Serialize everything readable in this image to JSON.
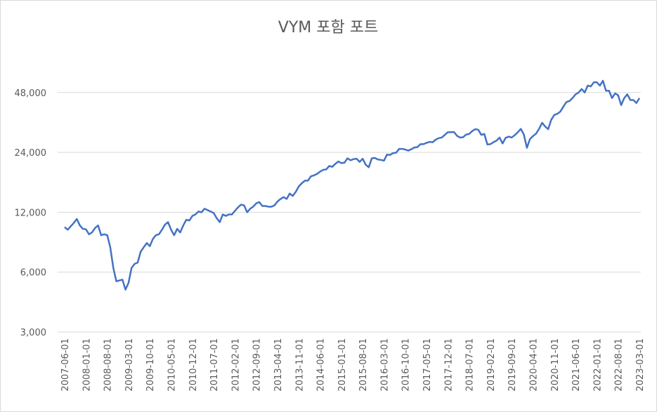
{
  "chart_data": {
    "type": "line",
    "title": "VYM 포함 포트",
    "categories": [
      "2007-06-01",
      null,
      null,
      null,
      null,
      null,
      null,
      "2008-01-01",
      null,
      null,
      null,
      null,
      null,
      null,
      "2008-08-01",
      null,
      null,
      null,
      null,
      null,
      null,
      "2009-03-01",
      null,
      null,
      null,
      null,
      null,
      null,
      "2009-10-01",
      null,
      null,
      null,
      null,
      null,
      null,
      "2010-05-01",
      null,
      null,
      null,
      null,
      null,
      null,
      "2010-12-01",
      null,
      null,
      null,
      null,
      null,
      null,
      "2011-07-01",
      null,
      null,
      null,
      null,
      null,
      null,
      "2012-02-01",
      null,
      null,
      null,
      null,
      null,
      null,
      "2012-09-01",
      null,
      null,
      null,
      null,
      null,
      null,
      "2013-04-01",
      null,
      null,
      null,
      null,
      null,
      null,
      "2013-11-01",
      null,
      null,
      null,
      null,
      null,
      null,
      "2014-06-01",
      null,
      null,
      null,
      null,
      null,
      null,
      "2015-01-01",
      null,
      null,
      null,
      null,
      null,
      null,
      "2015-08-01",
      null,
      null,
      null,
      null,
      null,
      null,
      "2016-03-01",
      null,
      null,
      null,
      null,
      null,
      null,
      "2016-10-01",
      null,
      null,
      null,
      null,
      null,
      null,
      "2017-05-01",
      null,
      null,
      null,
      null,
      null,
      null,
      "2017-12-01",
      null,
      null,
      null,
      null,
      null,
      null,
      "2018-07-01",
      null,
      null,
      null,
      null,
      null,
      null,
      "2019-02-01",
      null,
      null,
      null,
      null,
      null,
      null,
      "2019-09-01",
      null,
      null,
      null,
      null,
      null,
      null,
      "2020-04-01",
      null,
      null,
      null,
      null,
      null,
      null,
      "2020-11-01",
      null,
      null,
      null,
      null,
      null,
      null,
      "2021-06-01",
      null,
      null,
      null,
      null,
      null,
      null,
      "2022-01-01",
      null,
      null,
      null,
      null,
      null,
      null,
      "2022-08-01",
      null,
      null,
      null,
      null,
      null,
      null,
      "2023-03-01"
    ],
    "values": [
      10100,
      9800,
      10200,
      10600,
      11100,
      10300,
      9900,
      9850,
      9300,
      9500,
      10000,
      10300,
      9200,
      9300,
      9200,
      8000,
      6300,
      5400,
      5450,
      5500,
      4900,
      5300,
      6300,
      6600,
      6700,
      7600,
      8000,
      8400,
      8100,
      8800,
      9200,
      9300,
      9800,
      10400,
      10700,
      9800,
      9200,
      9900,
      9500,
      10300,
      11000,
      10900,
      11500,
      11700,
      12100,
      12000,
      12500,
      12300,
      12100,
      11900,
      11200,
      10700,
      11700,
      11500,
      11700,
      11700,
      12200,
      12700,
      13100,
      13000,
      12000,
      12500,
      12800,
      13300,
      13500,
      12900,
      12900,
      12800,
      12800,
      13000,
      13600,
      14000,
      14300,
      14000,
      14900,
      14500,
      15200,
      16200,
      16800,
      17300,
      17300,
      18200,
      18400,
      18700,
      19200,
      19600,
      19700,
      20500,
      20300,
      21000,
      21600,
      21200,
      21300,
      22400,
      21900,
      22200,
      22300,
      21500,
      22300,
      20800,
      20200,
      22400,
      22500,
      22100,
      22000,
      21800,
      23400,
      23300,
      23800,
      23900,
      25000,
      25000,
      24800,
      24500,
      24900,
      25400,
      25500,
      26400,
      26400,
      26800,
      27100,
      27000,
      27800,
      28300,
      28500,
      29400,
      30300,
      30300,
      30400,
      29100,
      28500,
      28600,
      29500,
      29700,
      30700,
      31400,
      31200,
      29400,
      29700,
      26300,
      26400,
      27000,
      27500,
      28500,
      26600,
      28400,
      28800,
      28500,
      29300,
      30300,
      31500,
      29500,
      25300,
      28000,
      29000,
      29800,
      31500,
      33800,
      32400,
      31400,
      35000,
      37000,
      37500,
      38500,
      40800,
      43000,
      43500,
      45000,
      47000,
      48000,
      50000,
      48000,
      52000,
      51500,
      54000,
      54000,
      52000,
      55000,
      49000,
      49000,
      45000,
      47500,
      46500,
      41500,
      45000,
      47000,
      44000,
      44000,
      42500,
      45000
    ],
    "color": "#4472c4",
    "log": true,
    "grid": true,
    "ylim": [
      3000,
      96000
    ],
    "yticks": [
      {
        "value": 3000,
        "label": "3,000"
      },
      {
        "value": 6000,
        "label": "6,000"
      },
      {
        "value": 12000,
        "label": "12,000"
      },
      {
        "value": 24000,
        "label": "24,000"
      },
      {
        "value": 48000,
        "label": "48,000"
      }
    ]
  }
}
